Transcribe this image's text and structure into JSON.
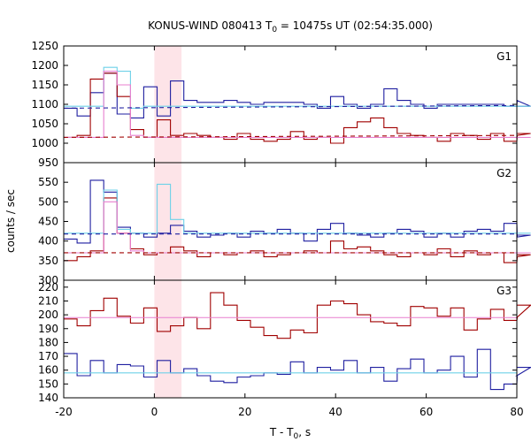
{
  "chart_data": {
    "type": "line",
    "title": "KONUS-WIND 080413 T",
    "title_sub": "0",
    "title_rest": " = 10475s UT (02:54:35.000)",
    "xlabel_main": "T - T",
    "xlabel_sub": "0",
    "xlabel_rest": ", s",
    "ylabel": "counts / sec",
    "xlim": [
      -20,
      80
    ],
    "xticks": [
      -20,
      0,
      20,
      40,
      60,
      80
    ],
    "shaded_interval": [
      0,
      6
    ],
    "colors": {
      "blue": "#1f1fa0",
      "red": "#a00000",
      "cyan": "#6ed1e8",
      "pink": "#e87fcf",
      "shade": "#fde4e8"
    },
    "step_dt": 2.944,
    "panels": [
      {
        "name": "G1",
        "ylim": [
          950,
          1250
        ],
        "yticks": [
          950,
          1000,
          1050,
          1100,
          1150,
          1200,
          1250
        ],
        "series": [
          {
            "name": "blue",
            "color": "blue",
            "style": "step",
            "x0": -20,
            "values": [
              1090,
              1070,
              1130,
              1180,
              1075,
              1065,
              1145,
              1070,
              1160,
              1110,
              1105,
              1105,
              1110,
              1105,
              1100,
              1105,
              1105,
              1105,
              1100,
              1090,
              1120,
              1100,
              1090,
              1100,
              1140,
              1110,
              1100,
              1090,
              1100,
              1100,
              1100,
              1100,
              1100,
              1095,
              1110,
              1095
            ]
          },
          {
            "name": "red",
            "color": "red",
            "style": "step",
            "x0": -20,
            "values": [
              1015,
              1020,
              1165,
              1180,
              1120,
              1035,
              1015,
              1060,
              1020,
              1025,
              1020,
              1015,
              1010,
              1025,
              1010,
              1005,
              1010,
              1030,
              1010,
              1015,
              1000,
              1040,
              1055,
              1065,
              1040,
              1025,
              1020,
              1015,
              1005,
              1025,
              1020,
              1010,
              1025,
              1005,
              1020,
              1025
            ]
          },
          {
            "name": "cyan-fit",
            "color": "cyan",
            "style": "step",
            "x0": -20,
            "values": [
              1095,
              1095,
              1095,
              1195,
              1185,
              1090,
              1095,
              1095,
              1095,
              1095,
              1095,
              1095,
              1095,
              1095,
              1095,
              1095,
              1095,
              1095,
              1095,
              1095,
              1095,
              1095,
              1095,
              1095,
              1095,
              1095,
              1095,
              1095,
              1095,
              1095,
              1095,
              1095,
              1095,
              1095,
              1095,
              1095
            ]
          },
          {
            "name": "pink-fit",
            "color": "pink",
            "style": "step",
            "x0": -20,
            "values": [
              1015,
              1015,
              1015,
              1185,
              1150,
              1020,
              1015,
              1015,
              1015,
              1015,
              1015,
              1015,
              1015,
              1015,
              1015,
              1015,
              1015,
              1015,
              1015,
              1015,
              1015,
              1015,
              1015,
              1015,
              1015,
              1015,
              1015,
              1015,
              1015,
              1015,
              1015,
              1015,
              1015,
              1015,
              1015,
              1015
            ]
          },
          {
            "name": "blue-bg",
            "color": "blue",
            "style": "dashed",
            "x": [
              -20,
              80
            ],
            "y": [
              1090,
              1097
            ]
          },
          {
            "name": "red-bg",
            "color": "red",
            "style": "dashed",
            "x": [
              -20,
              80
            ],
            "y": [
              1015,
              1020
            ]
          }
        ]
      },
      {
        "name": "G2",
        "ylim": [
          300,
          600
        ],
        "yticks": [
          300,
          350,
          400,
          450,
          500,
          550
        ],
        "series": [
          {
            "name": "blue",
            "color": "blue",
            "style": "step",
            "x0": -20,
            "values": [
              405,
              395,
              555,
              525,
              435,
              420,
              410,
              420,
              440,
              425,
              410,
              415,
              420,
              410,
              425,
              420,
              430,
              420,
              400,
              430,
              445,
              420,
              415,
              410,
              420,
              430,
              425,
              410,
              420,
              410,
              425,
              430,
              425,
              445,
              410,
              415
            ]
          },
          {
            "name": "red",
            "color": "red",
            "style": "step",
            "x0": -20,
            "values": [
              350,
              360,
              375,
              510,
              420,
              380,
              365,
              370,
              385,
              375,
              360,
              370,
              365,
              370,
              375,
              360,
              365,
              370,
              375,
              370,
              400,
              380,
              385,
              375,
              365,
              360,
              370,
              365,
              380,
              360,
              375,
              365,
              370,
              345,
              360,
              365
            ]
          },
          {
            "name": "cyan-fit",
            "color": "cyan",
            "style": "step",
            "x0": -20,
            "values": [
              420,
              420,
              420,
              530,
              430,
              420,
              420,
              545,
              455,
              420,
              420,
              420,
              420,
              420,
              420,
              420,
              420,
              420,
              420,
              420,
              420,
              420,
              420,
              420,
              420,
              420,
              420,
              420,
              420,
              420,
              420,
              420,
              420,
              420,
              420,
              420
            ]
          },
          {
            "name": "pink-fit",
            "color": "pink",
            "style": "step",
            "x0": -20,
            "values": [
              370,
              370,
              370,
              500,
              420,
              375,
              370,
              370,
              370,
              370,
              370,
              370,
              370,
              370,
              370,
              370,
              370,
              370,
              370,
              370,
              370,
              370,
              370,
              370,
              370,
              370,
              370,
              370,
              370,
              370,
              370,
              370,
              370,
              370,
              370,
              370
            ]
          },
          {
            "name": "blue-bg",
            "color": "blue",
            "style": "dashed",
            "x": [
              -20,
              80
            ],
            "y": [
              418,
              418
            ]
          },
          {
            "name": "red-bg",
            "color": "red",
            "style": "dashed",
            "x": [
              -20,
              80
            ],
            "y": [
              370,
              370
            ]
          }
        ]
      },
      {
        "name": "G3",
        "ylim": [
          140,
          225
        ],
        "yticks": [
          140,
          150,
          160,
          170,
          180,
          190,
          200,
          210,
          220
        ],
        "series": [
          {
            "name": "red",
            "color": "red",
            "style": "step",
            "x0": -20,
            "values": [
              197,
              192,
              203,
              212,
              199,
              194,
              205,
              188,
              192,
              198,
              190,
              216,
              207,
              196,
              191,
              185,
              183,
              189,
              187,
              207,
              210,
              208,
              200,
              195,
              194,
              192,
              206,
              205,
              199,
              205,
              189,
              197,
              204,
              196,
              198,
              207
            ]
          },
          {
            "name": "blue",
            "color": "blue",
            "style": "step",
            "x0": -20,
            "values": [
              172,
              156,
              167,
              158,
              164,
              163,
              155,
              167,
              158,
              161,
              156,
              152,
              151,
              155,
              156,
              158,
              157,
              166,
              158,
              162,
              160,
              167,
              158,
              162,
              152,
              161,
              168,
              158,
              160,
              170,
              155,
              175,
              146,
              150,
              156,
              162
            ]
          },
          {
            "name": "pink-fit",
            "color": "pink",
            "style": "line",
            "x": [
              -20,
              80
            ],
            "y": [
              198,
              198
            ]
          },
          {
            "name": "cyan-fit",
            "color": "cyan",
            "style": "line",
            "x": [
              -20,
              80
            ],
            "y": [
              158,
              158
            ]
          }
        ]
      }
    ]
  }
}
